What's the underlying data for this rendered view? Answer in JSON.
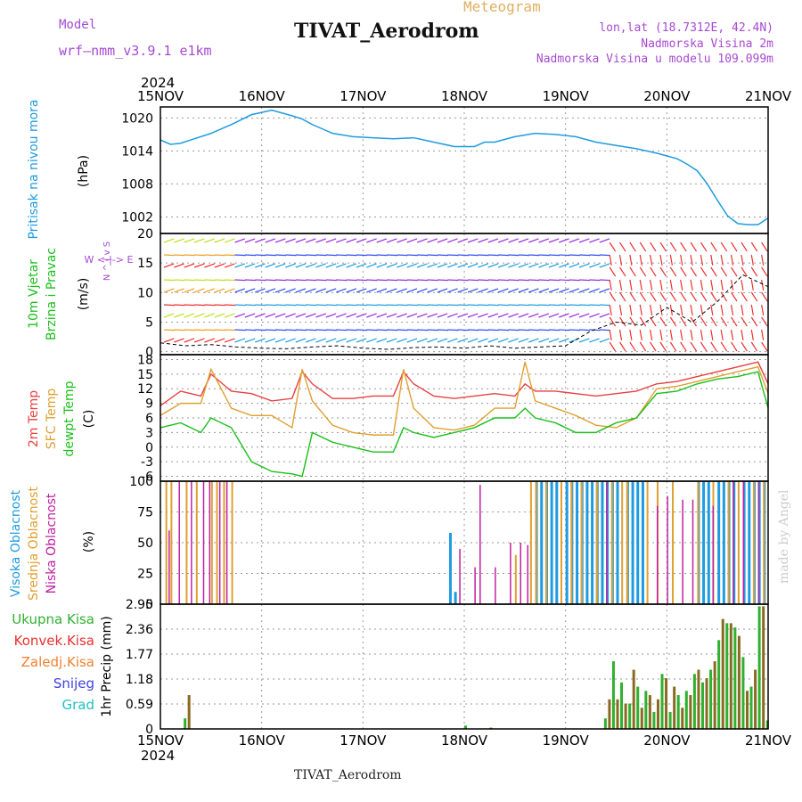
{
  "header": {
    "model_label": "Model",
    "model_name": "wrf—nmm_v3.9.1 e1km",
    "meteogram_label": "Meteogram",
    "station_title": "TIVAT_Aerodrom",
    "lonlat": "lon,lat (18.7312E, 42.4N)",
    "altitude": "Nadmorska Visina 2m",
    "model_altitude": "Nadmorska Visina u modelu 109.099m"
  },
  "footer": {
    "station": "TIVAT_Aerodrom",
    "credit": "made by Angel"
  },
  "colors": {
    "pressure": "#1e9be0",
    "temp2m": "#e84040",
    "sfc_temp": "#e0a030",
    "dewpoint": "#19c01a",
    "high_cloud": "#1e9be0",
    "mid_cloud": "#e0a030",
    "low_cloud": "#c020a0",
    "total_rain": "#30b030",
    "convective_rain": "#e83030",
    "frozen_rain": "#f08030",
    "snow": "#4040e0",
    "hail": "#20c0c0"
  },
  "chart_data": [
    {
      "type": "line",
      "name": "pressure",
      "ylabel_lines": [
        "Pritisak na nivou mora",
        "(hPa)"
      ],
      "x_ticks": [
        "15NOV",
        "16NOV",
        "17NOV",
        "18NOV",
        "19NOV",
        "20NOV",
        "21NOV"
      ],
      "x_year": "2024",
      "y_ticks": [
        "1020",
        "1014",
        "1008",
        "1002"
      ],
      "ylim": [
        999,
        1022
      ],
      "x": [
        0,
        0.1,
        0.2,
        0.3,
        0.5,
        0.7,
        0.9,
        1.1,
        1.3,
        1.4,
        1.5,
        1.7,
        1.9,
        2.1,
        2.3,
        2.5,
        2.7,
        2.9,
        3.1,
        3.2,
        3.3,
        3.5,
        3.7,
        3.9,
        4.1,
        4.3,
        4.5,
        4.7,
        4.9,
        5.1,
        5.2,
        5.3,
        5.4,
        5.5,
        5.6,
        5.7,
        5.8,
        5.9,
        6.0
      ],
      "series": [
        {
          "values": [
            1016,
            1015.2,
            1015.4,
            1016,
            1017.2,
            1018.8,
            1020.6,
            1021.4,
            1020.4,
            1019.8,
            1018.8,
            1017.2,
            1016.6,
            1016.4,
            1016.2,
            1016.4,
            1015.6,
            1014.8,
            1014.8,
            1015.6,
            1015.6,
            1016.6,
            1017.2,
            1017.0,
            1016.6,
            1015.6,
            1015.0,
            1014.4,
            1013.6,
            1012.6,
            1011.6,
            1010.4,
            1008.0,
            1005.0,
            1002.2,
            1000.8,
            1000.6,
            1000.6,
            1001.8
          ]
        }
      ]
    },
    {
      "type": "line",
      "name": "wind",
      "ylabel_lines": [
        "10m Vjetar",
        "Brzina i Pravac",
        "(m/s)"
      ],
      "compass": "W  <-|->  E",
      "compass_v": "N ^ | v S",
      "y_ticks": [
        "20",
        "15",
        "10",
        "5",
        "0"
      ],
      "ylim": [
        -0.5,
        20
      ],
      "x": [
        0,
        0.25,
        0.5,
        0.75,
        1.0,
        1.25,
        1.5,
        1.75,
        2.0,
        2.25,
        2.5,
        2.75,
        3.0,
        3.25,
        3.5,
        3.75,
        4.0,
        4.25,
        4.5,
        4.75,
        5.0,
        5.25,
        5.5,
        5.75,
        6.0
      ],
      "series": [
        {
          "values": [
            1.5,
            1.0,
            1.2,
            0.8,
            0.6,
            0.5,
            0.8,
            1.0,
            0.6,
            0.4,
            0.7,
            0.8,
            0.6,
            1.0,
            0.6,
            0.8,
            1.0,
            3.5,
            5.0,
            4.5,
            7.5,
            5.0,
            8.5,
            13.0,
            11.0
          ]
        }
      ]
    },
    {
      "type": "line",
      "name": "temperature",
      "ylabel_lines": [
        "2m Temp",
        "SFC Temp",
        "dewpt Temp",
        "(C)"
      ],
      "y_ticks": [
        "18",
        "15",
        "12",
        "9",
        "6",
        "3",
        "0",
        "-3",
        "-6"
      ],
      "ylim": [
        -7,
        19
      ],
      "x": [
        0,
        0.2,
        0.4,
        0.5,
        0.7,
        0.9,
        1.1,
        1.3,
        1.4,
        1.5,
        1.7,
        1.9,
        2.1,
        2.3,
        2.4,
        2.5,
        2.7,
        2.9,
        3.1,
        3.3,
        3.5,
        3.6,
        3.7,
        3.9,
        4.1,
        4.3,
        4.5,
        4.7,
        4.9,
        5.1,
        5.3,
        5.5,
        5.7,
        5.9,
        6.0
      ],
      "series": [
        {
          "name": "2m Temp",
          "values": [
            8.5,
            11.5,
            10.5,
            15,
            11.5,
            11,
            9.5,
            10,
            15.5,
            13,
            10,
            10,
            10.5,
            10.5,
            15.5,
            13,
            10.5,
            10,
            10.5,
            11,
            10.5,
            13,
            11.5,
            11.5,
            11,
            10.5,
            11,
            11.5,
            13,
            13.5,
            14.5,
            15.5,
            16.5,
            17.5,
            13
          ]
        },
        {
          "name": "SFC Temp",
          "values": [
            6.5,
            9,
            9,
            16,
            8,
            6.5,
            6.5,
            4,
            16,
            9.5,
            4.5,
            3,
            2.5,
            2.5,
            16,
            8,
            4,
            3.5,
            4.5,
            8,
            8,
            17.5,
            9.5,
            8,
            6.5,
            4.5,
            4,
            6,
            12,
            12.5,
            13.5,
            14.5,
            15.5,
            16.5,
            11
          ]
        },
        {
          "name": "dewpt Temp",
          "values": [
            4,
            5,
            3,
            6,
            4,
            -3,
            -5,
            -5.5,
            -6,
            3,
            1,
            0,
            -1,
            -1,
            4,
            3,
            2,
            3,
            4,
            6,
            6,
            8,
            6,
            5,
            3,
            3,
            5,
            6,
            11,
            11.5,
            13,
            14,
            14.5,
            15.5,
            8
          ]
        }
      ]
    },
    {
      "type": "bar",
      "name": "cloud_cover",
      "ylabel_lines": [
        "Visoka Oblacnost",
        "Srednja Oblacnost",
        "Niska Oblacnost",
        "(%)"
      ],
      "y_ticks": [
        "100",
        "75",
        "50",
        "25",
        "0"
      ],
      "ylim": [
        0,
        100
      ],
      "series": [
        {
          "name": "Visoka Oblacnost",
          "x": [
            2.85,
            2.9,
            3.7,
            3.75,
            3.8,
            3.85,
            3.9,
            4.0,
            4.05,
            4.1,
            4.15,
            4.2,
            4.25,
            4.3,
            4.35,
            4.4,
            4.45,
            4.5,
            4.6,
            4.65,
            4.7,
            4.75,
            5.3,
            5.35,
            5.4,
            5.5,
            5.55,
            5.6,
            5.65,
            5.75,
            5.8,
            5.85,
            5.9,
            5.95
          ],
          "values": [
            58,
            10,
            100,
            100,
            100,
            100,
            100,
            100,
            100,
            100,
            100,
            100,
            100,
            100,
            100,
            100,
            100,
            100,
            100,
            100,
            100,
            100,
            100,
            100,
            100,
            100,
            100,
            100,
            100,
            100,
            100,
            100,
            100,
            100
          ]
        },
        {
          "name": "Srednja Oblacnost",
          "x": [
            0.05,
            0.1,
            0.25,
            0.35,
            0.5,
            0.55,
            0.62,
            0.7,
            3.5,
            3.65,
            3.7,
            3.8,
            3.95,
            4.05,
            4.15,
            4.3,
            4.45,
            4.55,
            4.6,
            4.8,
            4.9,
            5.05,
            5.3,
            5.45,
            5.6,
            5.7,
            5.85,
            5.95
          ],
          "values": [
            100,
            100,
            100,
            100,
            100,
            100,
            100,
            100,
            40,
            100,
            100,
            100,
            100,
            100,
            100,
            100,
            100,
            100,
            100,
            100,
            100,
            100,
            100,
            100,
            100,
            100,
            100,
            100
          ]
        },
        {
          "name": "Niska Oblacnost",
          "x": [
            0.08,
            0.18,
            0.3,
            0.42,
            0.48,
            0.58,
            0.65,
            2.95,
            3.1,
            3.15,
            3.3,
            3.45,
            3.55,
            3.62,
            4.4,
            4.9,
            5.0,
            5.15,
            5.25,
            5.45,
            5.65,
            5.75,
            5.9
          ],
          "values": [
            60,
            100,
            100,
            100,
            100,
            100,
            100,
            45,
            30,
            97,
            30,
            50,
            50,
            48,
            100,
            80,
            88,
            85,
            85,
            80,
            100,
            100,
            100
          ]
        }
      ]
    },
    {
      "type": "bar",
      "name": "precip",
      "ylabel_lines": [
        "1hr Precip (mm)"
      ],
      "legend": [
        "Ukupna Kisa",
        "Konvek.Kisa",
        "Zaledj.Kisa",
        "Snijeg",
        "Grad"
      ],
      "y_ticks": [
        "2.95",
        "2.36",
        "1.77",
        "1.18",
        "0.59",
        "0"
      ],
      "ylim": [
        0,
        2.95
      ],
      "x": [
        0.23,
        0.27,
        3.0,
        3.25,
        4.38,
        4.42,
        4.46,
        4.5,
        4.54,
        4.58,
        4.62,
        4.66,
        4.7,
        4.74,
        4.78,
        4.82,
        4.86,
        4.9,
        4.94,
        4.98,
        5.02,
        5.06,
        5.1,
        5.14,
        5.18,
        5.22,
        5.26,
        5.3,
        5.34,
        5.38,
        5.42,
        5.46,
        5.5,
        5.54,
        5.58,
        5.62,
        5.66,
        5.7,
        5.74,
        5.78,
        5.82,
        5.86,
        5.9,
        5.94,
        5.98
      ],
      "values": [
        0.25,
        0.8,
        0.08,
        0.03,
        0.25,
        0.7,
        1.6,
        0.7,
        1.1,
        0.6,
        0.6,
        1.4,
        1.0,
        0.5,
        0.9,
        0.8,
        0.4,
        0.7,
        1.3,
        1.2,
        0.4,
        1.0,
        0.8,
        0.5,
        0.9,
        0.8,
        1.3,
        1.4,
        1.1,
        1.2,
        1.4,
        1.6,
        2.1,
        2.6,
        2.5,
        2.5,
        2.4,
        2.2,
        1.7,
        0.9,
        1.0,
        1.4,
        2.9,
        2.9,
        0.2
      ]
    }
  ]
}
